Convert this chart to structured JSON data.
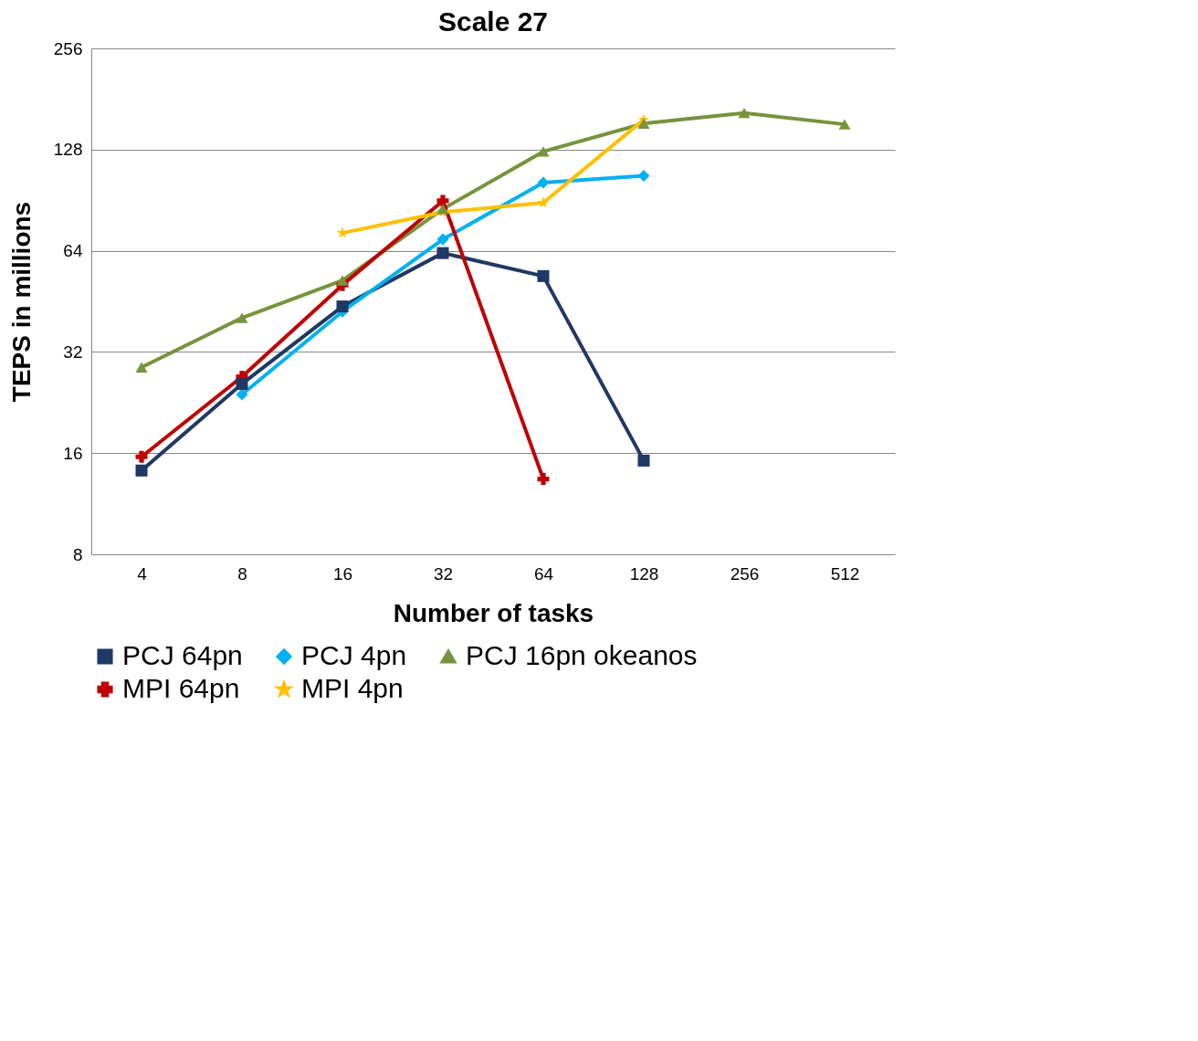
{
  "chart_data": {
    "type": "line",
    "title": "Scale 27",
    "xlabel": "Number of tasks",
    "ylabel": "TEPS in millions",
    "categories": [
      "4",
      "8",
      "16",
      "32",
      "64",
      "128",
      "256",
      "512"
    ],
    "log": "y",
    "ylim": [
      8,
      256
    ],
    "yticks": [
      8,
      16,
      32,
      64,
      128,
      256
    ],
    "grid": "y",
    "legend": "bottom",
    "series": [
      {
        "name": "PCJ 64pn",
        "color": "#1f3864",
        "marker": "square",
        "values": [
          14.2,
          25.7,
          43.7,
          63,
          53.8,
          15.2,
          null,
          null
        ]
      },
      {
        "name": "PCJ 4pn",
        "color": "#00b0f0",
        "marker": "diamond",
        "values": [
          null,
          23.9,
          42.2,
          69.2,
          102,
          107,
          null,
          null
        ]
      },
      {
        "name": "PCJ 16pn okeanos",
        "color": "#77933c",
        "marker": "triangle",
        "values": [
          28.8,
          40.4,
          52.2,
          85.2,
          126.3,
          153,
          164.5,
          152.2
        ]
      },
      {
        "name": "MPI 64pn",
        "color": "#c00000",
        "marker": "cross",
        "values": [
          15.6,
          27.0,
          50.6,
          90.1,
          13.4,
          null,
          null,
          null
        ]
      },
      {
        "name": "MPI 4pn",
        "color": "#ffc000",
        "marker": "star",
        "values": [
          null,
          null,
          72.3,
          83.4,
          88.9,
          157,
          null,
          null
        ]
      }
    ]
  }
}
